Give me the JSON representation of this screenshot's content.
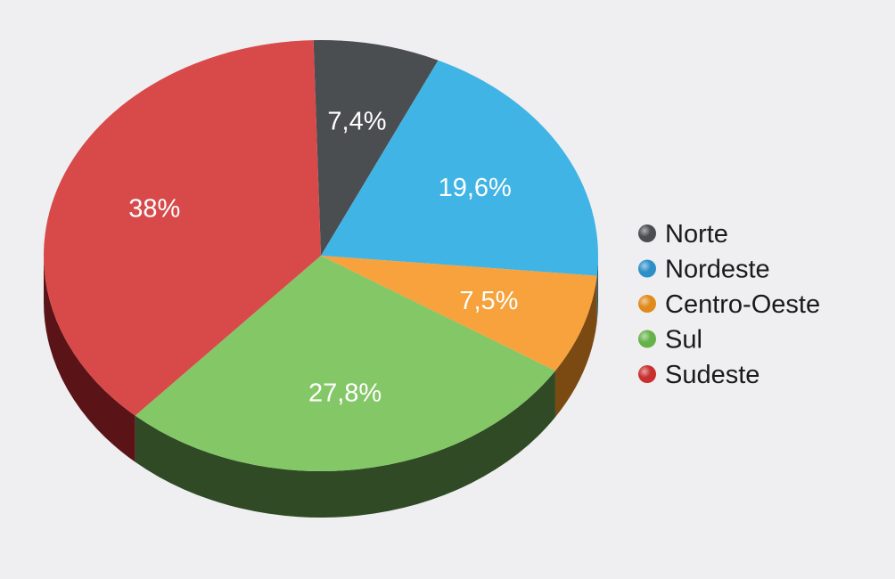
{
  "chart_data": {
    "type": "pie",
    "style": "3d",
    "legend_position": "right",
    "categories": [
      "Norte",
      "Nordeste",
      "Centro-Oeste",
      "Sul",
      "Sudeste"
    ],
    "values": [
      7.4,
      19.6,
      7.5,
      27.8,
      38
    ],
    "labels": [
      "7,4%",
      "19,6%",
      "7,5%",
      "27,8%",
      "38%"
    ],
    "colors": [
      "#4a4e51",
      "#41b4e6",
      "#f7a23c",
      "#84c767",
      "#d84a4a"
    ],
    "side_colors": [
      "#2b2d2f",
      "#1f5f7a",
      "#7a4a12",
      "#2f4a24",
      "#5a1418"
    ],
    "marker_colors": [
      "#4a4e51",
      "#2e8fc8",
      "#e08a1c",
      "#66b24a",
      "#c8302f"
    ]
  }
}
